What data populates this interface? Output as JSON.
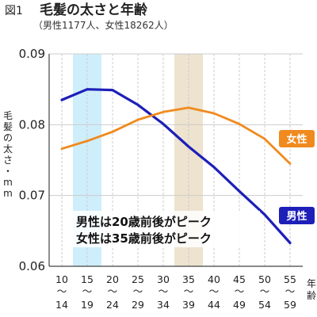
{
  "figure_label": "図1",
  "title": "毛髪の太さと年齢",
  "subtitle": "（男性1177人、女性18262人）",
  "colors": {
    "male": "#1d1fb8",
    "female": "#f08a1e",
    "male_highlight": "#cfeefb",
    "female_highlight": "#ede3cf",
    "grid": "#cccccc",
    "axis": "#444444"
  },
  "chart_data": {
    "type": "line",
    "ylabel": "毛髪の太さ・mm",
    "xlabel": "年齢",
    "ylim": [
      0.06,
      0.09
    ],
    "yticks": [
      "0.06",
      "0.07",
      "0.08",
      "0.09"
    ],
    "categories": [
      "10〜14",
      "15〜19",
      "20〜24",
      "25〜29",
      "30〜34",
      "35〜39",
      "40〜44",
      "45〜49",
      "50〜54",
      "55〜59"
    ],
    "category_top": [
      "10",
      "15",
      "20",
      "25",
      "30",
      "35",
      "40",
      "45",
      "50",
      "55"
    ],
    "category_bottom": [
      "14",
      "19",
      "24",
      "29",
      "34",
      "39",
      "44",
      "49",
      "54",
      "59"
    ],
    "grid": true,
    "highlight_bands": [
      {
        "category": "15〜19",
        "series": "男性"
      },
      {
        "category": "35〜39",
        "series": "女性"
      }
    ],
    "series": [
      {
        "name": "男性",
        "values": [
          0.0835,
          0.085,
          0.0849,
          0.0828,
          0.0801,
          0.0769,
          0.074,
          0.0706,
          0.0673,
          0.0633
        ]
      },
      {
        "name": "女性",
        "values": [
          0.0766,
          0.0777,
          0.079,
          0.0807,
          0.0818,
          0.0824,
          0.0816,
          0.0801,
          0.078,
          0.0745
        ]
      }
    ],
    "annotations": [
      "男性は20歳前後がピーク",
      "女性は35歳前後がピーク"
    ]
  }
}
